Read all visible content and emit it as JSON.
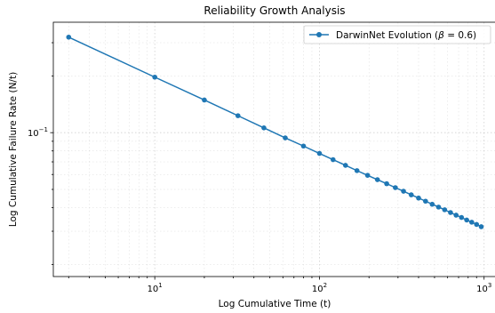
{
  "chart_data": {
    "type": "line",
    "title": "Reliability Growth Analysis",
    "xlabel": "Log Cumulative Time (t)",
    "ylabel": "Log Cumulative Failure Rate (N/t)",
    "x_scale": "log",
    "y_scale": "log",
    "xlim": [
      2.42,
      1194
    ],
    "ylim": [
      0.01725,
      0.3852
    ],
    "x_ticks": [
      {
        "value": 10,
        "base": "10",
        "exp": "1"
      },
      {
        "value": 100,
        "base": "10",
        "exp": "2"
      },
      {
        "value": 1000,
        "base": "10",
        "exp": "3"
      }
    ],
    "y_ticks": [
      {
        "value": 0.1,
        "base": "10",
        "exp": "−1"
      }
    ],
    "grid": true,
    "legend": {
      "position": "top-right",
      "label_prefix": "DarwinNet Evolution (",
      "label_beta": "β",
      "label_suffix": " = 0.6)"
    },
    "color": "#1f77b4",
    "series": [
      {
        "name": "DarwinNet Evolution (β = 0.6)",
        "x": [
          3,
          10,
          20,
          32,
          46,
          62,
          80,
          100,
          121,
          144,
          169,
          196,
          225,
          256,
          289,
          324,
          361,
          400,
          441,
          484,
          529,
          576,
          625,
          676,
          729,
          784,
          841,
          900,
          961
        ],
        "y": [
          0.321,
          0.197,
          0.149,
          0.123,
          0.106,
          0.0938,
          0.0849,
          0.0776,
          0.0719,
          0.0671,
          0.0629,
          0.0594,
          0.0563,
          0.0536,
          0.0511,
          0.0489,
          0.0468,
          0.045,
          0.0433,
          0.0417,
          0.0403,
          0.039,
          0.0377,
          0.0365,
          0.0355,
          0.0344,
          0.0335,
          0.0326,
          0.0317
        ]
      }
    ]
  }
}
